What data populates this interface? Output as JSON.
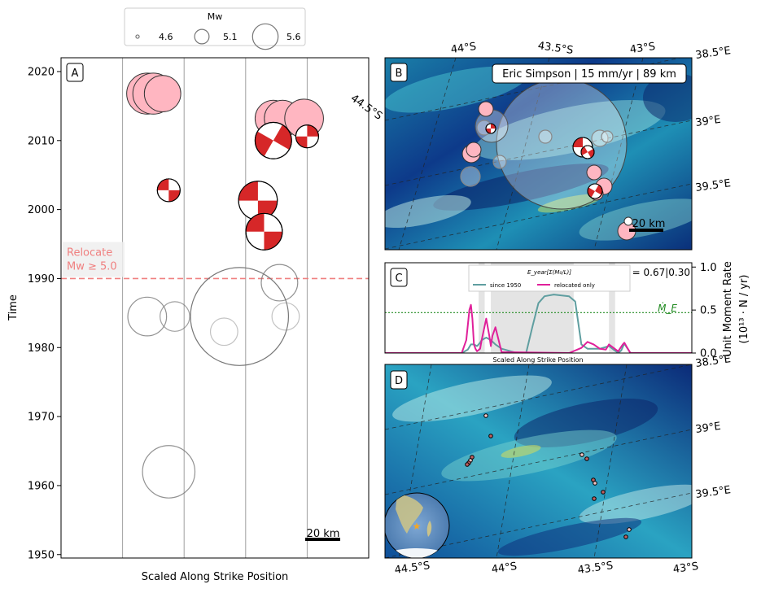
{
  "legend": {
    "title": "Mw",
    "entries": [
      {
        "label": "4.6",
        "mw": 4.6
      },
      {
        "label": "5.1",
        "mw": 5.1
      },
      {
        "label": "5.6",
        "mw": 5.6
      }
    ]
  },
  "colors": {
    "relocated_fill": "#ffb6c1",
    "mechanism_red": "#d62728",
    "threshold_line": "#f08080",
    "since_1950_line": "#5f9ea0",
    "relocated_only_line": "#e0209a",
    "mdot_line": "#228b22",
    "span_fill": "#e4e4e4"
  },
  "chart_data": [
    {
      "panel": "A",
      "type": "scatter",
      "panel_label": "A",
      "xlabel": "Scaled Along Strike Position",
      "ylabel": "Time",
      "ylim": [
        1949.5,
        2022
      ],
      "yticks": [
        {
          "value": 1950,
          "label": "1950"
        },
        {
          "value": 1960,
          "label": "1960"
        },
        {
          "value": 1970,
          "label": "1970"
        },
        {
          "value": 1980,
          "label": "1980"
        },
        {
          "value": 1990,
          "label": "1990"
        },
        {
          "value": 2000,
          "label": "2000"
        },
        {
          "value": 2010,
          "label": "2010"
        },
        {
          "value": 2020,
          "label": "2020"
        }
      ],
      "grid_x": [
        0.2,
        0.4,
        0.6,
        0.8
      ],
      "threshold": {
        "value": 1990,
        "text_line1": "Relocate",
        "text_line2": "Mw ≥ 5.0"
      },
      "scalebar_label": "20 km",
      "large_circle": {
        "x": 0.58,
        "y": 1984.5,
        "mw": 6.6
      },
      "relocated_events": [
        {
          "x": 0.28,
          "y": 2016.8,
          "mw": 5.35
        },
        {
          "x": 0.3,
          "y": 2016.8,
          "mw": 5.35
        },
        {
          "x": 0.33,
          "y": 2016.8,
          "mw": 5.25
        },
        {
          "x": 0.69,
          "y": 2013.2,
          "mw": 5.25
        },
        {
          "x": 0.72,
          "y": 2013.2,
          "mw": 5.25
        },
        {
          "x": 0.79,
          "y": 2013.2,
          "mw": 5.3
        }
      ],
      "mechanism_events": [
        {
          "x": 0.69,
          "y": 2010.0,
          "mw": 5.25,
          "ang": 60
        },
        {
          "x": 0.8,
          "y": 2010.6,
          "mw": 4.95,
          "ang": 90
        },
        {
          "x": 0.35,
          "y": 2002.8,
          "mw": 4.95,
          "ang": 0
        },
        {
          "x": 0.64,
          "y": 2001.3,
          "mw": 5.3,
          "ang": 0
        },
        {
          "x": 0.66,
          "y": 1996.8,
          "mw": 5.25,
          "ang": 0
        }
      ],
      "catalog_events": [
        {
          "x": 0.71,
          "y": 1989.4,
          "mw": 5.25,
          "alpha": 0.8
        },
        {
          "x": 0.28,
          "y": 1984.5,
          "mw": 5.3,
          "alpha": 0.8
        },
        {
          "x": 0.37,
          "y": 1984.5,
          "mw": 5.1,
          "alpha": 0.7
        },
        {
          "x": 0.73,
          "y": 1984.5,
          "mw": 5.05,
          "alpha": 0.45
        },
        {
          "x": 0.53,
          "y": 1982.3,
          "mw": 5.05,
          "alpha": 0.45
        },
        {
          "x": 0.35,
          "y": 1962.0,
          "mw": 5.6,
          "alpha": 0.8
        }
      ]
    },
    {
      "panel": "B",
      "type": "map",
      "panel_label": "B",
      "info_box": "Eric Simpson | 15 mm/yr | 89 km",
      "top_labels": [
        "44°S",
        "43.5°S",
        "43°S"
      ],
      "right_labels": [
        "38.5°E",
        "39°E",
        "39.5°E"
      ],
      "left_label": "44.5°S",
      "scalebar_label": "20 km"
    },
    {
      "panel": "C",
      "type": "line",
      "panel_label": "C",
      "xlabel": "Scaled Along Strike Position",
      "ylabel_line1": "Unit Moment Rate",
      "ylabel_line2": "(10¹³ · N / yr)",
      "ylim": [
        0,
        1.05
      ],
      "yticks": [
        {
          "value": 0,
          "label": "0.0"
        },
        {
          "value": 0.5,
          "label": "0.5"
        },
        {
          "value": 1,
          "label": "1.0"
        }
      ],
      "csf_text": "CSF = 0.67|0.30",
      "legend_title": "E_year[Σ(M₀/L)]",
      "mdot": {
        "value": 0.47,
        "label": "Ṁ_E"
      },
      "spans": [
        [
          0.305,
          0.325
        ],
        [
          0.345,
          0.615
        ],
        [
          0.73,
          0.75
        ]
      ],
      "series": [
        {
          "name": "since 1950",
          "x": [
            0,
            0.25,
            0.27,
            0.28,
            0.29,
            0.3,
            0.31,
            0.315,
            0.33,
            0.345,
            0.36,
            0.38,
            0.43,
            0.46,
            0.48,
            0.5,
            0.52,
            0.55,
            0.6,
            0.62,
            0.64,
            0.66,
            0.7,
            0.73,
            0.745,
            0.76,
            0.77,
            0.78,
            0.8,
            1.0
          ],
          "values": [
            0,
            0,
            0.04,
            0.1,
            0.1,
            0.08,
            0.12,
            0.15,
            0.18,
            0.15,
            0.1,
            0.05,
            0,
            0,
            0.3,
            0.58,
            0.66,
            0.68,
            0.66,
            0.6,
            0.1,
            0.05,
            0.05,
            0.08,
            0.04,
            0,
            0.03,
            0.11,
            0,
            0
          ]
        },
        {
          "name": "relocated only",
          "x": [
            0,
            0.25,
            0.265,
            0.275,
            0.28,
            0.285,
            0.29,
            0.295,
            0.3,
            0.31,
            0.315,
            0.33,
            0.34,
            0.345,
            0.35,
            0.36,
            0.38,
            0.6,
            0.64,
            0.66,
            0.68,
            0.7,
            0.72,
            0.73,
            0.76,
            0.775,
            0.78,
            0.79,
            0.8,
            1.0
          ],
          "values": [
            0,
            0,
            0.15,
            0.5,
            0.56,
            0.4,
            0.1,
            0.05,
            0.02,
            0.05,
            0.15,
            0.4,
            0.2,
            0.08,
            0.2,
            0.3,
            0.01,
            0,
            0.06,
            0.13,
            0.1,
            0.05,
            0.04,
            0.1,
            0.02,
            0.1,
            0.12,
            0.06,
            0,
            0
          ]
        }
      ]
    },
    {
      "panel": "D",
      "type": "map",
      "panel_label": "D",
      "bottom_labels": [
        "44.5°S",
        "44°S",
        "43.5°S",
        "43°S"
      ],
      "right_labels": [
        "38.5°E",
        "39°E",
        "39.5°E"
      ]
    }
  ]
}
